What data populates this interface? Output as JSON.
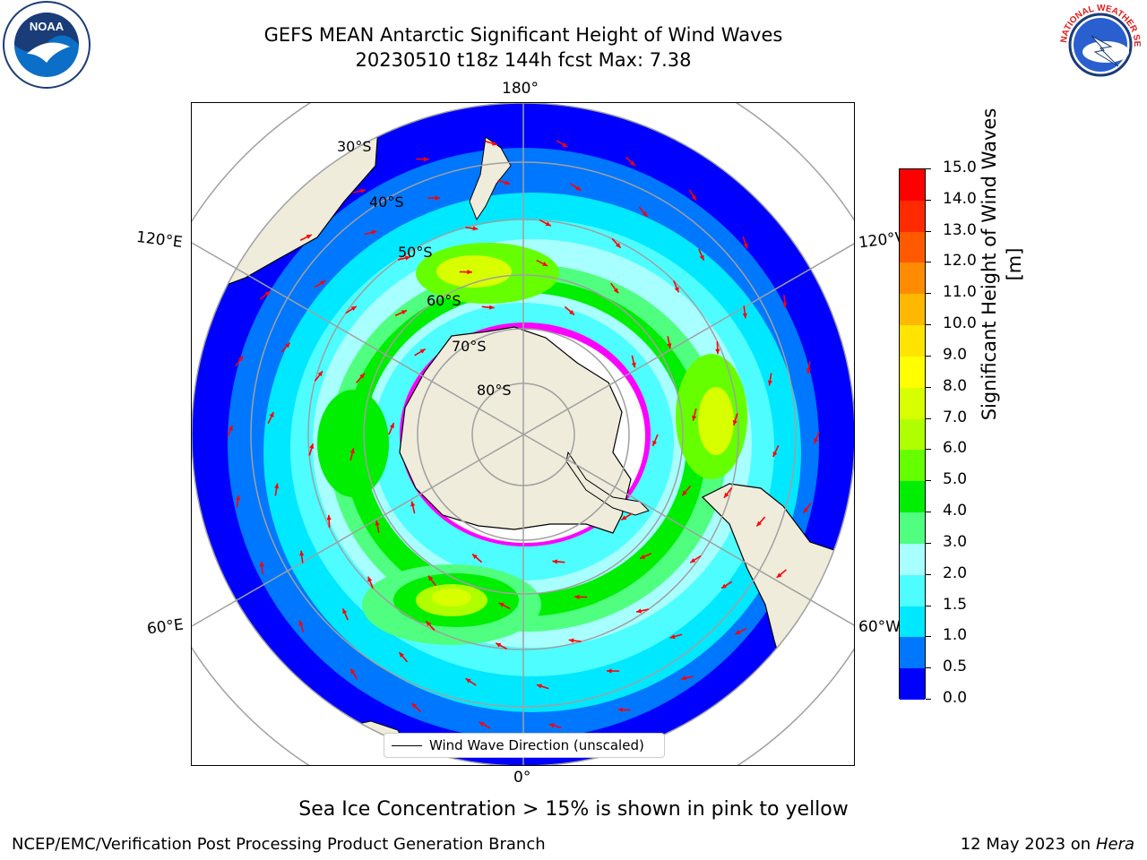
{
  "header": {
    "title_line1": "GEFS MEAN Antarctic Significant Height of Wind Waves",
    "title_line2": "20230510 t18z 144h fcst   Max: 7.38"
  },
  "logos": {
    "left": "NOAA",
    "right": "NATIONAL WEATHER SERVICE"
  },
  "map": {
    "projection": "south-polar-stereographic",
    "lon_labels": [
      "180°",
      "120°E",
      "120°W",
      "60°E",
      "60°W",
      "0°"
    ],
    "lat_labels": [
      "30°S",
      "40°S",
      "50°S",
      "60°S",
      "70°S",
      "80°S"
    ],
    "legend": "Wind Wave Direction (unscaled)",
    "arrow_color": "#ff0000",
    "land_color": "#efecdc",
    "ice_colors": [
      "#ff00ff",
      "#ffff00"
    ]
  },
  "colorbar": {
    "title": "Significant Height of Wind Waves [m]",
    "tick_labels": [
      "0.0",
      "0.5",
      "1.0",
      "1.5",
      "2.0",
      "3.0",
      "4.0",
      "5.0",
      "6.0",
      "7.0",
      "8.0",
      "9.0",
      "10.0",
      "11.0",
      "12.0",
      "13.0",
      "14.0",
      "15.0"
    ],
    "colors": [
      "#0000ff",
      "#0077ff",
      "#00e8ff",
      "#4efdff",
      "#a8ffff",
      "#50ff80",
      "#00ee00",
      "#66ff00",
      "#b0ff00",
      "#d8ff00",
      "#ffff00",
      "#ffe400",
      "#ffb800",
      "#ff8c00",
      "#ff5a00",
      "#ff2a00",
      "#ff0000"
    ]
  },
  "caption": "Sea Ice Concentration > 15% is shown in pink to yellow",
  "footer": {
    "left": "NCEP/EMC/Verification Post Processing Product Generation Branch",
    "right_date": "12 May 2023 on",
    "right_machine": "Hera"
  }
}
